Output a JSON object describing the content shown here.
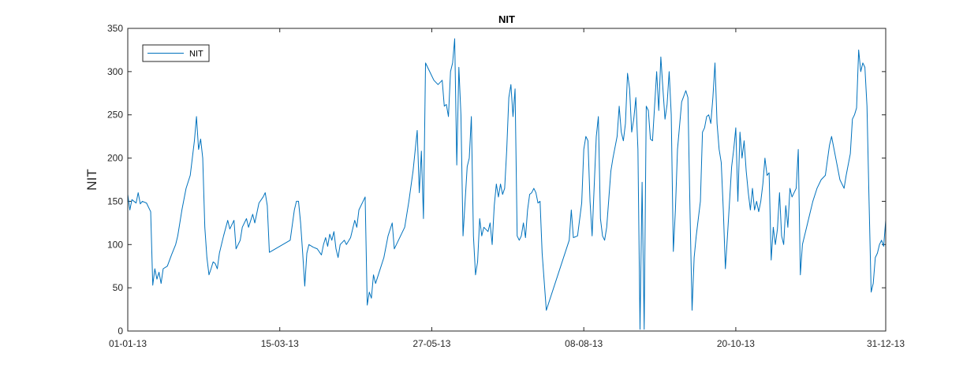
{
  "chart_data": {
    "type": "line",
    "title": "NIT",
    "xlabel": "",
    "ylabel": "NIT",
    "x_axis_type": "date",
    "xlim": [
      "01-01-13",
      "31-12-13"
    ],
    "ylim": [
      0,
      350
    ],
    "x_ticks": [
      "01-01-13",
      "15-03-13",
      "27-05-13",
      "08-08-13",
      "20-10-13",
      "31-12-13"
    ],
    "y_ticks": [
      0,
      50,
      100,
      150,
      200,
      250,
      300,
      350
    ],
    "grid": false,
    "legend": {
      "location": "top-left",
      "entries": [
        "NIT"
      ]
    },
    "line_color": "#0072BD",
    "series": [
      {
        "name": "NIT",
        "points": [
          [
            "01-01-13",
            158
          ],
          [
            "02-01-13",
            140
          ],
          [
            "03-01-13",
            152
          ],
          [
            "04-01-13",
            150
          ],
          [
            "05-01-13",
            148
          ],
          [
            "06-01-13",
            160
          ],
          [
            "07-01-13",
            147
          ],
          [
            "08-01-13",
            150
          ],
          [
            "10-01-13",
            148
          ],
          [
            "12-01-13",
            138
          ],
          [
            "13-01-13",
            53
          ],
          [
            "14-01-13",
            72
          ],
          [
            "15-01-13",
            60
          ],
          [
            "16-01-13",
            68
          ],
          [
            "17-01-13",
            55
          ],
          [
            "18-01-13",
            72
          ],
          [
            "20-01-13",
            75
          ],
          [
            "22-01-13",
            88
          ],
          [
            "24-01-13",
            100
          ],
          [
            "25-01-13",
            110
          ],
          [
            "27-01-13",
            140
          ],
          [
            "29-01-13",
            165
          ],
          [
            "31-01-13",
            180
          ],
          [
            "02-02-13",
            220
          ],
          [
            "03-02-13",
            248
          ],
          [
            "04-02-13",
            210
          ],
          [
            "05-02-13",
            222
          ],
          [
            "06-02-13",
            200
          ],
          [
            "07-02-13",
            120
          ],
          [
            "08-02-13",
            85
          ],
          [
            "09-02-13",
            65
          ],
          [
            "10-02-13",
            72
          ],
          [
            "11-02-13",
            80
          ],
          [
            "12-02-13",
            78
          ],
          [
            "13-02-13",
            72
          ],
          [
            "14-02-13",
            90
          ],
          [
            "16-02-13",
            110
          ],
          [
            "18-02-13",
            128
          ],
          [
            "19-02-13",
            118
          ],
          [
            "21-02-13",
            128
          ],
          [
            "22-02-13",
            95
          ],
          [
            "24-02-13",
            105
          ],
          [
            "25-02-13",
            120
          ],
          [
            "27-02-13",
            130
          ],
          [
            "28-02-13",
            120
          ],
          [
            "02-03-13",
            135
          ],
          [
            "03-03-13",
            125
          ],
          [
            "05-03-13",
            148
          ],
          [
            "07-03-13",
            155
          ],
          [
            "08-03-13",
            160
          ],
          [
            "09-03-13",
            145
          ],
          [
            "10-03-13",
            91
          ],
          [
            "20-03-13",
            105
          ],
          [
            "22-03-13",
            140
          ],
          [
            "23-03-13",
            150
          ],
          [
            "24-03-13",
            150
          ],
          [
            "25-03-13",
            125
          ],
          [
            "26-03-13",
            90
          ],
          [
            "27-03-13",
            52
          ],
          [
            "28-03-13",
            90
          ],
          [
            "29-03-13",
            100
          ],
          [
            "31-03-13",
            97
          ],
          [
            "02-04-13",
            95
          ],
          [
            "04-04-13",
            88
          ],
          [
            "05-04-13",
            100
          ],
          [
            "06-04-13",
            108
          ],
          [
            "07-04-13",
            98
          ],
          [
            "08-04-13",
            112
          ],
          [
            "09-04-13",
            105
          ],
          [
            "10-04-13",
            115
          ],
          [
            "11-04-13",
            95
          ],
          [
            "12-04-13",
            85
          ],
          [
            "13-04-13",
            100
          ],
          [
            "15-04-13",
            105
          ],
          [
            "16-04-13",
            100
          ],
          [
            "18-04-13",
            108
          ],
          [
            "20-04-13",
            128
          ],
          [
            "21-04-13",
            120
          ],
          [
            "22-04-13",
            140
          ],
          [
            "24-04-13",
            150
          ],
          [
            "25-04-13",
            155
          ],
          [
            "26-04-13",
            30
          ],
          [
            "27-04-13",
            45
          ],
          [
            "28-04-13",
            38
          ],
          [
            "29-04-13",
            65
          ],
          [
            "30-04-13",
            55
          ],
          [
            "02-05-13",
            70
          ],
          [
            "04-05-13",
            85
          ],
          [
            "06-05-13",
            110
          ],
          [
            "08-05-13",
            125
          ],
          [
            "09-05-13",
            95
          ],
          [
            "10-05-13",
            100
          ],
          [
            "12-05-13",
            110
          ],
          [
            "14-05-13",
            120
          ],
          [
            "16-05-13",
            150
          ],
          [
            "18-05-13",
            185
          ],
          [
            "20-05-13",
            232
          ],
          [
            "21-05-13",
            160
          ],
          [
            "22-05-13",
            208
          ],
          [
            "23-05-13",
            130
          ],
          [
            "24-05-13",
            310
          ],
          [
            "26-05-13",
            300
          ],
          [
            "28-05-13",
            290
          ],
          [
            "30-05-13",
            285
          ],
          [
            "01-06-13",
            290
          ],
          [
            "02-06-13",
            260
          ],
          [
            "03-06-13",
            262
          ],
          [
            "04-06-13",
            248
          ],
          [
            "05-06-13",
            300
          ],
          [
            "06-06-13",
            310
          ],
          [
            "07-06-13",
            338
          ],
          [
            "08-06-13",
            192
          ],
          [
            "09-06-13",
            305
          ],
          [
            "10-06-13",
            250
          ],
          [
            "11-06-13",
            110
          ],
          [
            "13-06-13",
            190
          ],
          [
            "14-06-13",
            200
          ],
          [
            "15-06-13",
            248
          ],
          [
            "16-06-13",
            110
          ],
          [
            "17-06-13",
            65
          ],
          [
            "18-06-13",
            80
          ],
          [
            "19-06-13",
            130
          ],
          [
            "20-06-13",
            110
          ],
          [
            "21-06-13",
            120
          ],
          [
            "23-06-13",
            115
          ],
          [
            "24-06-13",
            125
          ],
          [
            "25-06-13",
            100
          ],
          [
            "26-06-13",
            145
          ],
          [
            "27-06-13",
            170
          ],
          [
            "28-06-13",
            155
          ],
          [
            "29-06-13",
            170
          ],
          [
            "30-06-13",
            158
          ],
          [
            "01-07-13",
            165
          ],
          [
            "02-07-13",
            210
          ],
          [
            "03-07-13",
            270
          ],
          [
            "04-07-13",
            285
          ],
          [
            "05-07-13",
            248
          ],
          [
            "06-07-13",
            280
          ],
          [
            "07-07-13",
            110
          ],
          [
            "08-07-13",
            105
          ],
          [
            "09-07-13",
            110
          ],
          [
            "10-07-13",
            125
          ],
          [
            "11-07-13",
            108
          ],
          [
            "12-07-13",
            140
          ],
          [
            "13-07-13",
            158
          ],
          [
            "14-07-13",
            160
          ],
          [
            "15-07-13",
            165
          ],
          [
            "16-07-13",
            160
          ],
          [
            "17-07-13",
            148
          ],
          [
            "18-07-13",
            150
          ],
          [
            "19-07-13",
            90
          ],
          [
            "21-07-13",
            24
          ],
          [
            "01-08-13",
            105
          ],
          [
            "02-08-13",
            140
          ],
          [
            "03-08-13",
            108
          ],
          [
            "05-08-13",
            110
          ],
          [
            "07-08-13",
            148
          ],
          [
            "08-08-13",
            210
          ],
          [
            "09-08-13",
            225
          ],
          [
            "10-08-13",
            220
          ],
          [
            "11-08-13",
            150
          ],
          [
            "12-08-13",
            110
          ],
          [
            "14-08-13",
            225
          ],
          [
            "15-08-13",
            248
          ],
          [
            "16-08-13",
            130
          ],
          [
            "17-08-13",
            110
          ],
          [
            "18-08-13",
            105
          ],
          [
            "19-08-13",
            120
          ],
          [
            "21-08-13",
            185
          ],
          [
            "22-08-13",
            200
          ],
          [
            "24-08-13",
            225
          ],
          [
            "25-08-13",
            260
          ],
          [
            "26-08-13",
            230
          ],
          [
            "27-08-13",
            220
          ],
          [
            "28-08-13",
            240
          ],
          [
            "29-08-13",
            298
          ],
          [
            "30-08-13",
            280
          ],
          [
            "31-08-13",
            230
          ],
          [
            "01-09-13",
            245
          ],
          [
            "02-09-13",
            270
          ],
          [
            "03-09-13",
            210
          ],
          [
            "04-09-13",
            2
          ],
          [
            "05-09-13",
            172
          ],
          [
            "06-09-13",
            2
          ],
          [
            "07-09-13",
            260
          ],
          [
            "08-09-13",
            255
          ],
          [
            "09-09-13",
            222
          ],
          [
            "10-09-13",
            220
          ],
          [
            "11-09-13",
            260
          ],
          [
            "12-09-13",
            300
          ],
          [
            "13-09-13",
            255
          ],
          [
            "14-09-13",
            317
          ],
          [
            "15-09-13",
            280
          ],
          [
            "16-09-13",
            245
          ],
          [
            "17-09-13",
            262
          ],
          [
            "18-09-13",
            300
          ],
          [
            "19-09-13",
            250
          ],
          [
            "20-09-13",
            92
          ],
          [
            "21-09-13",
            140
          ],
          [
            "22-09-13",
            210
          ],
          [
            "24-09-13",
            265
          ],
          [
            "26-09-13",
            278
          ],
          [
            "27-09-13",
            270
          ],
          [
            "28-09-13",
            140
          ],
          [
            "29-09-13",
            24
          ],
          [
            "30-09-13",
            85
          ],
          [
            "01-10-13",
            110
          ],
          [
            "03-10-13",
            150
          ],
          [
            "04-10-13",
            230
          ],
          [
            "05-10-13",
            235
          ],
          [
            "06-10-13",
            248
          ],
          [
            "07-10-13",
            250
          ],
          [
            "08-10-13",
            240
          ],
          [
            "09-10-13",
            270
          ],
          [
            "10-10-13",
            310
          ],
          [
            "11-10-13",
            240
          ],
          [
            "12-10-13",
            210
          ],
          [
            "13-10-13",
            195
          ],
          [
            "14-10-13",
            140
          ],
          [
            "15-10-13",
            72
          ],
          [
            "16-10-13",
            110
          ],
          [
            "18-10-13",
            190
          ],
          [
            "19-10-13",
            210
          ],
          [
            "20-10-13",
            235
          ],
          [
            "21-10-13",
            150
          ],
          [
            "22-10-13",
            230
          ],
          [
            "23-10-13",
            200
          ],
          [
            "24-10-13",
            220
          ],
          [
            "25-10-13",
            185
          ],
          [
            "26-10-13",
            160
          ],
          [
            "27-10-13",
            140
          ],
          [
            "28-10-13",
            165
          ],
          [
            "29-10-13",
            140
          ],
          [
            "30-10-13",
            150
          ],
          [
            "31-10-13",
            138
          ],
          [
            "01-11-13",
            150
          ],
          [
            "02-11-13",
            170
          ],
          [
            "03-11-13",
            200
          ],
          [
            "04-11-13",
            180
          ],
          [
            "05-11-13",
            183
          ],
          [
            "06-11-13",
            82
          ],
          [
            "07-11-13",
            120
          ],
          [
            "08-11-13",
            100
          ],
          [
            "09-11-13",
            118
          ],
          [
            "10-11-13",
            160
          ],
          [
            "11-11-13",
            110
          ],
          [
            "12-11-13",
            100
          ],
          [
            "13-11-13",
            145
          ],
          [
            "14-11-13",
            120
          ],
          [
            "15-11-13",
            165
          ],
          [
            "16-11-13",
            155
          ],
          [
            "17-11-13",
            160
          ],
          [
            "18-11-13",
            165
          ],
          [
            "19-11-13",
            210
          ],
          [
            "20-11-13",
            65
          ],
          [
            "21-11-13",
            100
          ],
          [
            "23-11-13",
            120
          ],
          [
            "25-11-13",
            140
          ],
          [
            "26-11-13",
            150
          ],
          [
            "28-11-13",
            165
          ],
          [
            "30-11-13",
            175
          ],
          [
            "02-12-13",
            180
          ],
          [
            "04-12-13",
            215
          ],
          [
            "05-12-13",
            225
          ],
          [
            "07-12-13",
            200
          ],
          [
            "09-12-13",
            175
          ],
          [
            "10-12-13",
            170
          ],
          [
            "11-12-13",
            165
          ],
          [
            "12-12-13",
            180
          ],
          [
            "14-12-13",
            205
          ],
          [
            "15-12-13",
            245
          ],
          [
            "16-12-13",
            250
          ],
          [
            "17-12-13",
            258
          ],
          [
            "18-12-13",
            325
          ],
          [
            "19-12-13",
            300
          ],
          [
            "20-12-13",
            310
          ],
          [
            "21-12-13",
            305
          ],
          [
            "22-12-13",
            260
          ],
          [
            "23-12-13",
            150
          ],
          [
            "24-12-13",
            45
          ],
          [
            "25-12-13",
            55
          ],
          [
            "26-12-13",
            85
          ],
          [
            "27-12-13",
            90
          ],
          [
            "28-12-13",
            100
          ],
          [
            "29-12-13",
            105
          ],
          [
            "30-12-13",
            98
          ],
          [
            "31-12-13",
            128
          ]
        ]
      }
    ]
  }
}
